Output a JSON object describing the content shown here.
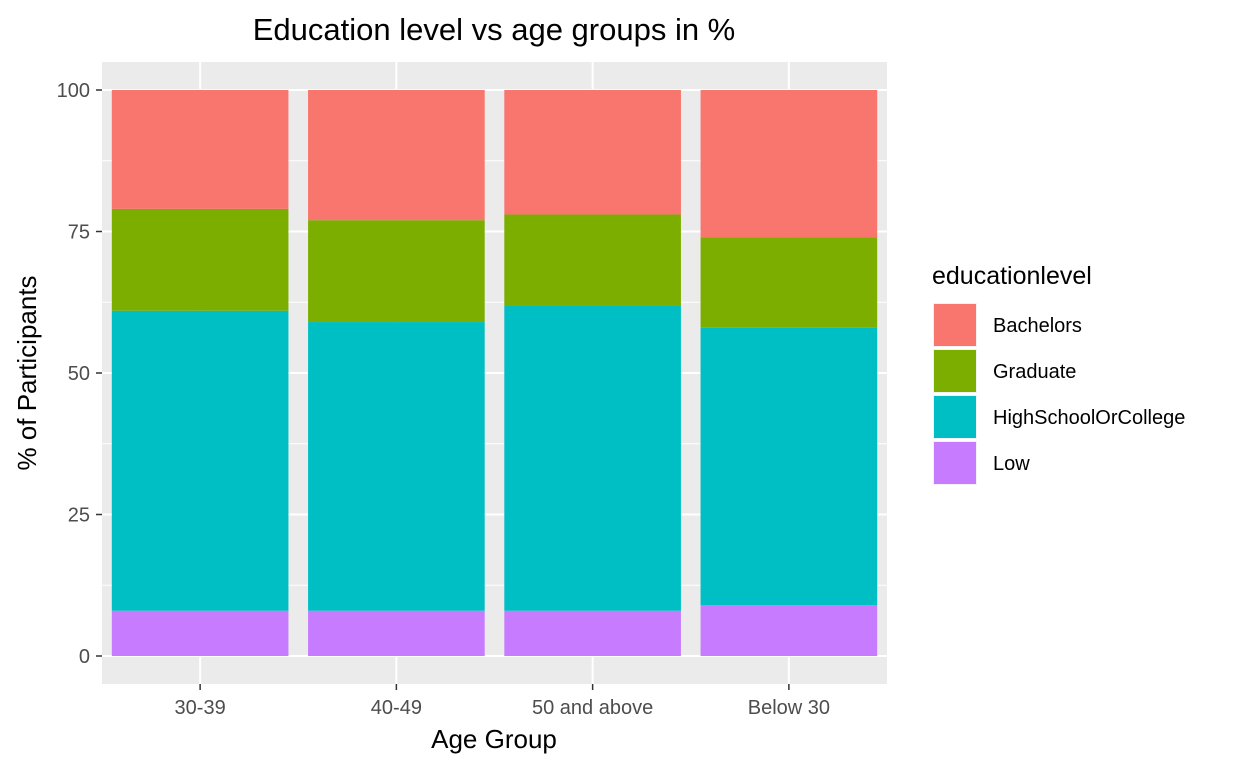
{
  "chart_data": {
    "type": "bar",
    "stacked": true,
    "title": "Education level vs age groups in %",
    "xlabel": "Age Group",
    "ylabel": "% of Participants",
    "ylim": [
      0,
      100
    ],
    "yticks": [
      0,
      25,
      50,
      75,
      100
    ],
    "categories": [
      "30-39",
      "40-49",
      "50 and above",
      "Below 30"
    ],
    "series": [
      {
        "name": "Low",
        "color": "#C77CFF",
        "values": [
          8,
          8,
          8,
          9
        ]
      },
      {
        "name": "HighSchoolOrCollege",
        "color": "#00BFC4",
        "values": [
          53,
          51,
          54,
          49
        ]
      },
      {
        "name": "Graduate",
        "color": "#7CAE00",
        "values": [
          18,
          18,
          16,
          16
        ]
      },
      {
        "name": "Bachelors",
        "color": "#F8766D",
        "values": [
          21,
          23,
          22,
          26
        ]
      }
    ],
    "legend": {
      "title": "educationlevel",
      "order": [
        "Bachelors",
        "Graduate",
        "HighSchoolOrCollege",
        "Low"
      ],
      "position": "right"
    },
    "grid": true,
    "panel_background": "#EBEBEB"
  }
}
